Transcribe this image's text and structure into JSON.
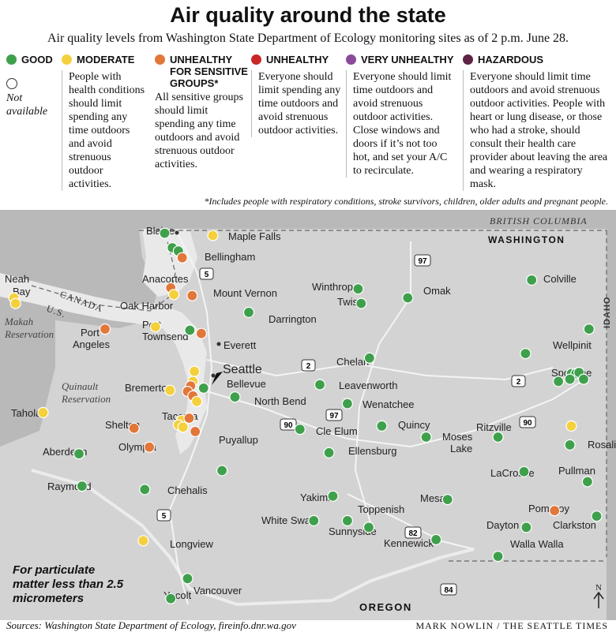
{
  "title": "Air quality around the state",
  "subtitle": "Air quality levels from Washington State Department of Ecology monitoring sites as of 2 p.m. June 28.",
  "colors": {
    "good": "#3fa04c",
    "moderate": "#f4d03c",
    "usg": "#e2773a",
    "unhealthy": "#c92727",
    "very": "#8b4b9b",
    "hazardous": "#5e2345",
    "na": "#ffffff"
  },
  "legend": {
    "good": "GOOD",
    "not_available": "Not available",
    "moderate": {
      "label": "MODERATE",
      "desc": "People with health conditions should limit spending any time outdoors and avoid strenuous outdoor activities."
    },
    "usg": {
      "label1": "UNHEALTHY",
      "label2": "FOR SENSITIVE",
      "label3": "GROUPS*",
      "desc": "All sensitive groups should limit spending any time outdoors and avoid strenuous outdoor activities."
    },
    "unhealthy": {
      "label": "UNHEALTHY",
      "desc": "Everyone should limit spending any time outdoors and avoid strenuous outdoor activities."
    },
    "very": {
      "label": "VERY UNHEALTHY",
      "desc": "Everyone should limit time outdoors and avoid strenuous outdoor activities. Close windows and doors if it’s not too hot, and set your A/C to recirculate."
    },
    "hazardous": {
      "label": "HAZARDOUS",
      "desc": "Everyone should limit time outdoors and avoid strenuous outdoor activities. People with heart or lung disease, or those who had a stroke, should consult their health care provider about leaving the area and wearing a respiratory mask."
    }
  },
  "footnote": "*Includes people with respiratory conditions, stroke survivors, children, older adults and pregnant people.",
  "regions": {
    "bc": "BRITISH COLUMBIA",
    "wa": "WASHINGTON",
    "canada": "CANADA",
    "us": "U.S.",
    "idaho": "IDAHO",
    "oregon": "OREGON",
    "makah": "Makah Reservation",
    "quinault": "Quinault Reservation"
  },
  "highways": [
    "5",
    "97",
    "2",
    "90",
    "82",
    "84"
  ],
  "compass": "N",
  "cities": [
    "Blaine",
    "Maple Falls",
    "Bellingham",
    "Anacortes",
    "Mount Vernon",
    "Oak Harbor",
    "Neah Bay",
    "Port Angeles",
    "Port Townsend",
    "Darrington",
    "Everett",
    "Seattle",
    "Bellevue",
    "Bremerton",
    "North Bend",
    "Tacoma",
    "Shelton",
    "Olympia",
    "Puyallup",
    "Taholah",
    "Aberdeen",
    "Raymond",
    "Chehalis",
    "Longview",
    "Yacolt",
    "Vancouver",
    "Winthrop",
    "Twisp",
    "Omak",
    "Colville",
    "Wellpinit",
    "Spokane",
    "Chelan",
    "Leavenworth",
    "Wenatchee",
    "Cle Elum",
    "Ellensburg",
    "Quincy",
    "Moses Lake",
    "Ritzville",
    "Rosalia",
    "LaCrosse",
    "Pullman",
    "Yakima",
    "Toppenish",
    "White Swan",
    "Sunnyside",
    "Kennewick",
    "Mesa",
    "Pomeroy",
    "Dayton",
    "Clarkston",
    "Walla Walla"
  ],
  "sites": [
    {
      "c": "good",
      "lon": -122.7,
      "lat": 48.96
    },
    {
      "c": "moderate",
      "lon": -122.07,
      "lat": 48.94
    },
    {
      "c": "good",
      "lon": -122.6,
      "lat": 48.83
    },
    {
      "c": "good",
      "lon": -122.52,
      "lat": 48.8
    },
    {
      "c": "usg",
      "lon": -122.47,
      "lat": 48.74
    },
    {
      "c": "usg",
      "lon": -122.62,
      "lat": 48.47
    },
    {
      "c": "moderate",
      "lon": -122.58,
      "lat": 48.41
    },
    {
      "c": "usg",
      "lon": -122.34,
      "lat": 48.4
    },
    {
      "c": "moderate",
      "lon": -124.67,
      "lat": 48.38
    },
    {
      "c": "moderate",
      "lon": -124.65,
      "lat": 48.33
    },
    {
      "c": "usg",
      "lon": -123.48,
      "lat": 48.1
    },
    {
      "c": "moderate",
      "lon": -122.82,
      "lat": 48.12
    },
    {
      "c": "good",
      "lon": -122.37,
      "lat": 48.09
    },
    {
      "c": "usg",
      "lon": -122.22,
      "lat": 48.06
    },
    {
      "c": "good",
      "lon": -121.6,
      "lat": 48.25
    },
    {
      "c": "moderate",
      "lon": -122.31,
      "lat": 47.72
    },
    {
      "c": "moderate",
      "lon": -122.33,
      "lat": 47.63
    },
    {
      "c": "usg",
      "lon": -122.36,
      "lat": 47.59
    },
    {
      "c": "usg",
      "lon": -122.4,
      "lat": 47.54
    },
    {
      "c": "usg",
      "lon": -122.33,
      "lat": 47.5
    },
    {
      "c": "good",
      "lon": -122.19,
      "lat": 47.57
    },
    {
      "c": "moderate",
      "lon": -122.28,
      "lat": 47.45
    },
    {
      "c": "moderate",
      "lon": -122.63,
      "lat": 47.55
    },
    {
      "c": "good",
      "lon": -121.78,
      "lat": 47.49
    },
    {
      "c": "moderate",
      "lon": -122.48,
      "lat": 47.28
    },
    {
      "c": "moderate",
      "lon": -122.52,
      "lat": 47.24
    },
    {
      "c": "moderate",
      "lon": -122.46,
      "lat": 47.22
    },
    {
      "c": "usg",
      "lon": -122.38,
      "lat": 47.3
    },
    {
      "c": "usg",
      "lon": -122.3,
      "lat": 47.18
    },
    {
      "c": "usg",
      "lon": -123.1,
      "lat": 47.21
    },
    {
      "c": "usg",
      "lon": -122.9,
      "lat": 47.04
    },
    {
      "c": "moderate",
      "lon": -124.29,
      "lat": 47.35
    },
    {
      "c": "good",
      "lon": -123.82,
      "lat": 46.98
    },
    {
      "c": "good",
      "lon": -123.78,
      "lat": 46.69
    },
    {
      "c": "good",
      "lon": -122.96,
      "lat": 46.66
    },
    {
      "c": "good",
      "lon": -121.95,
      "lat": 46.83
    },
    {
      "c": "moderate",
      "lon": -122.98,
      "lat": 46.2
    },
    {
      "c": "good",
      "lon": -122.4,
      "lat": 45.86
    },
    {
      "c": "good",
      "lon": -122.62,
      "lat": 45.68
    },
    {
      "c": "good",
      "lon": -120.17,
      "lat": 48.46
    },
    {
      "c": "good",
      "lon": -120.13,
      "lat": 48.33
    },
    {
      "c": "good",
      "lon": -119.52,
      "lat": 48.38
    },
    {
      "c": "good",
      "lon": -117.9,
      "lat": 48.54
    },
    {
      "c": "good",
      "lon": -117.15,
      "lat": 48.1
    },
    {
      "c": "good",
      "lon": -117.98,
      "lat": 47.88
    },
    {
      "c": "good",
      "lon": -117.38,
      "lat": 47.7
    },
    {
      "c": "good",
      "lon": -117.32,
      "lat": 47.7
    },
    {
      "c": "good",
      "lon": -117.28,
      "lat": 47.71
    },
    {
      "c": "good",
      "lon": -117.4,
      "lat": 47.65
    },
    {
      "c": "good",
      "lon": -117.22,
      "lat": 47.65
    },
    {
      "c": "good",
      "lon": -117.55,
      "lat": 47.63
    },
    {
      "c": "good",
      "lon": -120.02,
      "lat": 47.84
    },
    {
      "c": "good",
      "lon": -120.67,
      "lat": 47.6
    },
    {
      "c": "good",
      "lon": -120.31,
      "lat": 47.43
    },
    {
      "c": "good",
      "lon": -120.93,
      "lat": 47.2
    },
    {
      "c": "good",
      "lon": -120.55,
      "lat": 46.99
    },
    {
      "c": "good",
      "lon": -119.86,
      "lat": 47.23
    },
    {
      "c": "good",
      "lon": -119.28,
      "lat": 47.13
    },
    {
      "c": "good",
      "lon": -118.34,
      "lat": 47.13
    },
    {
      "c": "moderate",
      "lon": -117.38,
      "lat": 47.23
    },
    {
      "c": "good",
      "lon": -117.4,
      "lat": 47.06
    },
    {
      "c": "good",
      "lon": -118.0,
      "lat": 46.82
    },
    {
      "c": "good",
      "lon": -117.17,
      "lat": 46.73
    },
    {
      "c": "good",
      "lon": -120.5,
      "lat": 46.6
    },
    {
      "c": "good",
      "lon": -120.31,
      "lat": 46.38
    },
    {
      "c": "good",
      "lon": -120.75,
      "lat": 46.38
    },
    {
      "c": "good",
      "lon": -120.03,
      "lat": 46.32
    },
    {
      "c": "good",
      "lon": -119.15,
      "lat": 46.21
    },
    {
      "c": "good",
      "lon": -119.0,
      "lat": 46.57
    },
    {
      "c": "usg",
      "lon": -117.6,
      "lat": 46.47
    },
    {
      "c": "good",
      "lon": -117.97,
      "lat": 46.32
    },
    {
      "c": "good",
      "lon": -117.05,
      "lat": 46.42
    },
    {
      "c": "good",
      "lon": -118.34,
      "lat": 46.06
    }
  ],
  "map_note": "For particulate matter less than 2.5 micrometers",
  "sources": "Sources: Washington State Department of Ecology, fireinfo.dnr.wa.gov",
  "credit": "MARK NOWLIN / THE SEATTLE TIMES"
}
